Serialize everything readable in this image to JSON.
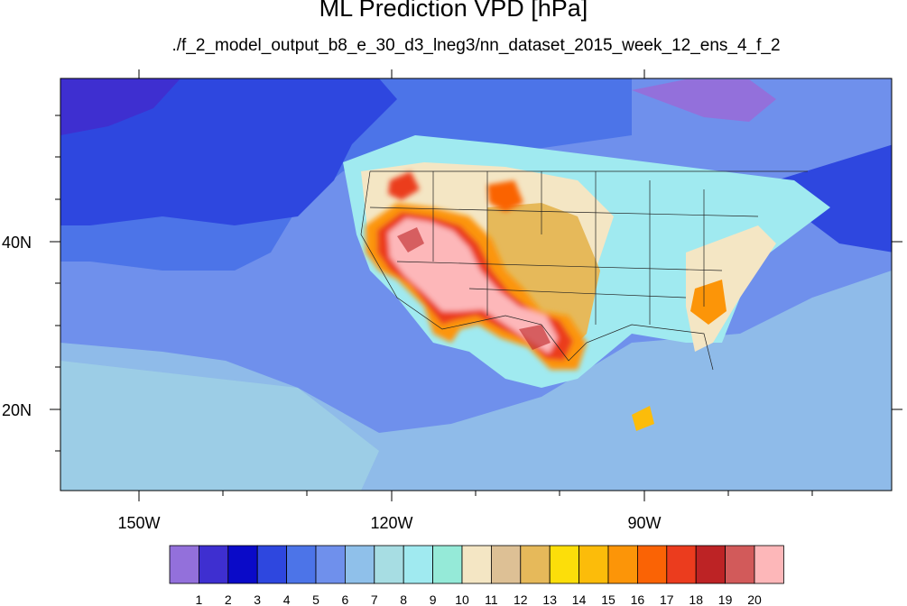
{
  "title": "ML Prediction VPD [hPa]",
  "subtitle": "./f_2_model_output_b8_e_30_d3_lneg3/nn_dataset_2015_week_12_ens_4_f_2",
  "map": {
    "lon_range": [
      -160,
      -62
    ],
    "lat_range": [
      11,
      59
    ],
    "lon_ticks": [
      {
        "value": -150,
        "label": "150W"
      },
      {
        "value": -120,
        "label": "120W"
      },
      {
        "value": -90,
        "label": "90W"
      }
    ],
    "lat_ticks": [
      {
        "value": 40,
        "label": "40N"
      },
      {
        "value": 20,
        "label": "20N"
      }
    ],
    "high_vpd_regions": [
      "US Southwest deserts",
      "Southern Texas / northern Mexico",
      "Georgia / South Carolina"
    ]
  },
  "colorbar": {
    "labels": [
      "1",
      "2",
      "3",
      "4",
      "5",
      "6",
      "7",
      "8",
      "9",
      "10",
      "11",
      "12",
      "13",
      "14",
      "15",
      "16",
      "17",
      "18",
      "19",
      "20"
    ],
    "colors": [
      "#9370db",
      "#3e2fd0",
      "#0a0ac8",
      "#2e47df",
      "#4c74e8",
      "#6f90ec",
      "#8fc0ea",
      "#a7dde3",
      "#a0eaf0",
      "#95ead8",
      "#f4e6c4",
      "#ddc095",
      "#e6b95a",
      "#fcde0a",
      "#fcbc0a",
      "#fc9508",
      "#fa6305",
      "#eb3c1e",
      "#bd2325",
      "#d25a5a",
      "#fdb7b9"
    ]
  }
}
